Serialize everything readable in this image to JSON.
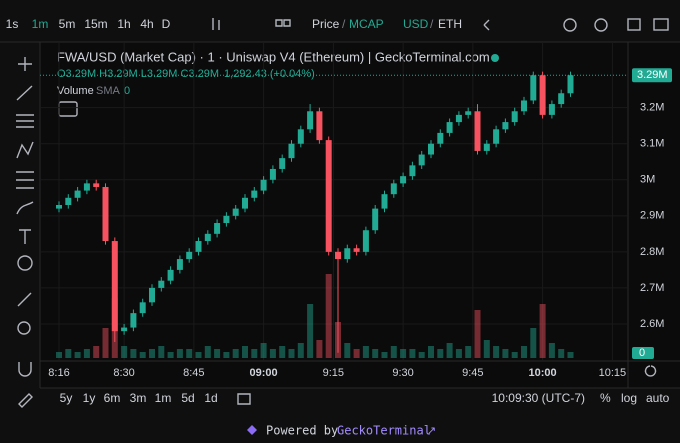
{
  "toolbar": {
    "intervals": [
      "1s",
      "1m",
      "5m",
      "15m",
      "1h",
      "4h",
      "D"
    ],
    "price": "Price",
    "sep1": "/",
    "mcap": "MCAP",
    "usd": "USD",
    "sep2": "/",
    "eth": "ETH"
  },
  "legend": {
    "title": "FWA/USD (Market Cap) · 1 · Uniswap V4 (Ethereum) | GeckoTerminal.com",
    "ohlc": "O3.29M H3.29M L3.29M C3.29M",
    "change": "1,292.43 (+0.04%)",
    "volume": "Volume",
    "sma": "SMA",
    "sma_value": "0"
  },
  "chart_data": {
    "type": "candlestick",
    "up_color": "#22ab94",
    "down_color": "#f7525f",
    "ylim": [
      2.5,
      3.36
    ],
    "yticks": [
      {
        "value": 2.6,
        "label": "2.6M"
      },
      {
        "value": 2.7,
        "label": "2.7M"
      },
      {
        "value": 2.8,
        "label": "2.8M"
      },
      {
        "value": 2.9,
        "label": "2.9M"
      },
      {
        "value": 3.0,
        "label": "3M"
      },
      {
        "value": 3.1,
        "label": "3.1M"
      },
      {
        "value": 3.2,
        "label": "3.2M"
      }
    ],
    "last_price": {
      "value": 3.29,
      "label": "3.29M"
    },
    "volume_axis_label": "0",
    "xticks": [
      {
        "value": "08:16",
        "label": "8:16"
      },
      {
        "value": "08:30",
        "label": "8:30"
      },
      {
        "value": "08:45",
        "label": "8:45"
      },
      {
        "value": "09:00",
        "label": "09:00"
      },
      {
        "value": "09:15",
        "label": "9:15"
      },
      {
        "value": "09:30",
        "label": "9:30"
      },
      {
        "value": "09:45",
        "label": "9:45"
      },
      {
        "value": "10:00",
        "label": "10:00"
      },
      {
        "value": "10:15",
        "label": "10:15"
      }
    ],
    "candles": {
      "t": [
        "08:16",
        "08:18",
        "08:20",
        "08:22",
        "08:24",
        "08:26",
        "08:28",
        "08:30",
        "08:32",
        "08:34",
        "08:36",
        "08:38",
        "08:40",
        "08:42",
        "08:44",
        "08:46",
        "08:48",
        "08:50",
        "08:52",
        "08:54",
        "08:56",
        "08:58",
        "09:00",
        "09:02",
        "09:04",
        "09:06",
        "09:08",
        "09:10",
        "09:12",
        "09:14",
        "09:16",
        "09:18",
        "09:20",
        "09:22",
        "09:24",
        "09:26",
        "09:28",
        "09:30",
        "09:32",
        "09:34",
        "09:36",
        "09:38",
        "09:40",
        "09:42",
        "09:44",
        "09:46",
        "09:48",
        "09:50",
        "09:52",
        "09:54",
        "09:56",
        "09:58",
        "10:00",
        "10:02",
        "10:04",
        "10:06"
      ],
      "o": [
        2.92,
        2.93,
        2.95,
        2.97,
        2.99,
        2.98,
        2.83,
        2.58,
        2.59,
        2.63,
        2.66,
        2.7,
        2.72,
        2.75,
        2.78,
        2.8,
        2.83,
        2.85,
        2.88,
        2.9,
        2.92,
        2.95,
        2.97,
        3.0,
        3.03,
        3.06,
        3.1,
        3.14,
        3.19,
        3.11,
        2.8,
        2.78,
        2.81,
        2.8,
        2.86,
        2.92,
        2.96,
        2.99,
        3.01,
        3.04,
        3.07,
        3.1,
        3.13,
        3.16,
        3.18,
        3.19,
        3.08,
        3.1,
        3.14,
        3.16,
        3.19,
        3.22,
        3.29,
        3.18,
        3.21,
        3.24
      ],
      "h": [
        2.94,
        2.96,
        2.98,
        3.0,
        3.0,
        2.99,
        2.84,
        2.6,
        2.64,
        2.67,
        2.71,
        2.73,
        2.76,
        2.79,
        2.81,
        2.84,
        2.86,
        2.89,
        2.91,
        2.93,
        2.96,
        2.98,
        3.01,
        3.04,
        3.07,
        3.11,
        3.15,
        3.21,
        3.2,
        3.12,
        2.81,
        2.82,
        2.82,
        2.87,
        2.93,
        2.97,
        3.0,
        3.02,
        3.05,
        3.08,
        3.11,
        3.14,
        3.17,
        3.19,
        3.2,
        3.21,
        3.11,
        3.15,
        3.17,
        3.2,
        3.23,
        3.3,
        3.3,
        3.22,
        3.25,
        3.3
      ],
      "l": [
        2.91,
        2.92,
        2.94,
        2.96,
        2.97,
        2.82,
        2.55,
        2.57,
        2.58,
        2.62,
        2.65,
        2.69,
        2.71,
        2.74,
        2.77,
        2.79,
        2.82,
        2.84,
        2.87,
        2.89,
        2.91,
        2.94,
        2.96,
        2.99,
        3.02,
        3.05,
        3.09,
        3.13,
        3.1,
        2.79,
        2.52,
        2.77,
        2.79,
        2.79,
        2.85,
        2.91,
        2.95,
        2.98,
        3.0,
        3.03,
        3.06,
        3.09,
        3.12,
        3.15,
        3.17,
        3.07,
        3.07,
        3.09,
        3.13,
        3.15,
        3.18,
        3.21,
        3.17,
        3.17,
        3.2,
        3.23
      ],
      "c": [
        2.93,
        2.95,
        2.97,
        2.99,
        2.98,
        2.83,
        2.58,
        2.59,
        2.63,
        2.66,
        2.7,
        2.72,
        2.75,
        2.78,
        2.8,
        2.83,
        2.85,
        2.88,
        2.9,
        2.92,
        2.95,
        2.97,
        3.0,
        3.03,
        3.06,
        3.1,
        3.14,
        3.19,
        3.11,
        2.8,
        2.78,
        2.81,
        2.8,
        2.86,
        2.92,
        2.96,
        2.99,
        3.01,
        3.04,
        3.07,
        3.1,
        3.13,
        3.16,
        3.18,
        3.19,
        3.08,
        3.1,
        3.14,
        3.16,
        3.19,
        3.22,
        3.29,
        3.18,
        3.21,
        3.24,
        3.29
      ],
      "v": [
        2,
        3,
        2,
        3,
        4,
        10,
        20,
        4,
        3,
        2,
        3,
        4,
        2,
        3,
        3,
        2,
        4,
        3,
        2,
        3,
        4,
        3,
        5,
        3,
        4,
        3,
        5,
        18,
        6,
        28,
        12,
        5,
        3,
        4,
        3,
        2,
        4,
        3,
        3,
        2,
        4,
        3,
        5,
        3,
        4,
        16,
        6,
        4,
        3,
        2,
        4,
        10,
        18,
        5,
        3,
        2
      ]
    }
  },
  "bottom": {
    "ranges": [
      "5y",
      "1y",
      "6m",
      "3m",
      "1m",
      "5d",
      "1d"
    ],
    "clock": "10:09:30 (UTC-7)",
    "pct": "%",
    "log": "log",
    "auto": "auto"
  },
  "footer": {
    "powered": "Powered by",
    "brand": "GeckoTerminal",
    "arrow": "↗"
  }
}
